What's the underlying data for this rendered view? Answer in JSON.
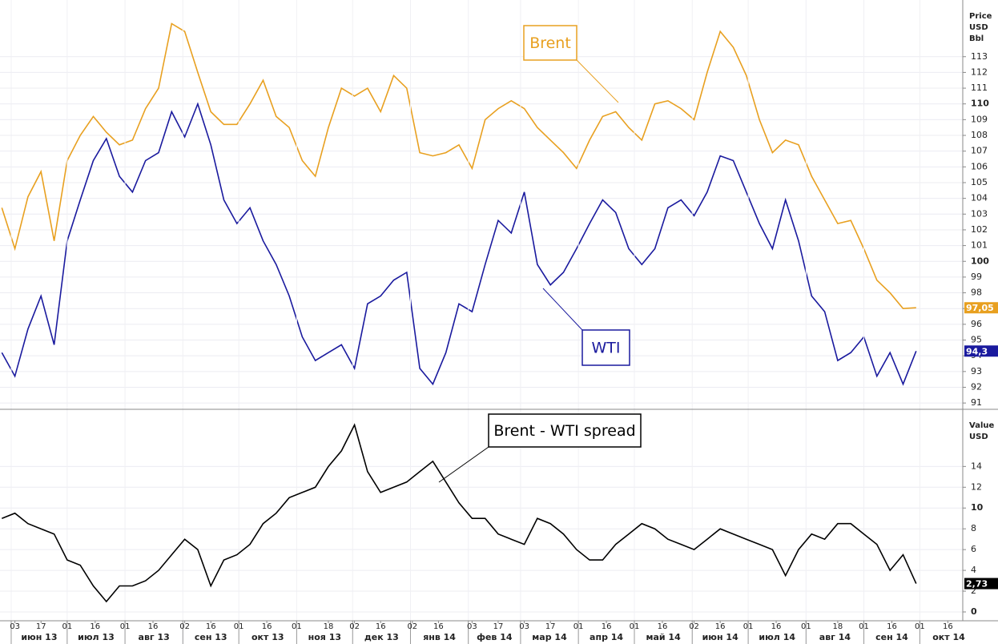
{
  "chart_data": [
    {
      "type": "line",
      "ylabel": [
        "Price",
        "USD",
        "Bbl"
      ],
      "x": [
        "2013-05-27",
        "2013-06-03",
        "2013-06-10",
        "2013-06-17",
        "2013-06-24",
        "2013-07-01",
        "2013-07-08",
        "2013-07-15",
        "2013-07-22",
        "2013-07-29",
        "2013-08-05",
        "2013-08-12",
        "2013-08-19",
        "2013-08-26",
        "2013-09-02",
        "2013-09-09",
        "2013-09-16",
        "2013-09-23",
        "2013-09-30",
        "2013-10-07",
        "2013-10-14",
        "2013-10-21",
        "2013-10-28",
        "2013-11-04",
        "2013-11-11",
        "2013-11-18",
        "2013-11-25",
        "2013-12-02",
        "2013-12-09",
        "2013-12-16",
        "2013-12-23",
        "2013-12-30",
        "2014-01-06",
        "2014-01-13",
        "2014-01-20",
        "2014-01-27",
        "2014-02-03",
        "2014-02-10",
        "2014-02-17",
        "2014-02-24",
        "2014-03-03",
        "2014-03-10",
        "2014-03-17",
        "2014-03-24",
        "2014-03-31",
        "2014-04-07",
        "2014-04-14",
        "2014-04-21",
        "2014-04-28",
        "2014-05-05",
        "2014-05-12",
        "2014-05-19",
        "2014-05-26",
        "2014-06-02",
        "2014-06-09",
        "2014-06-16",
        "2014-06-23",
        "2014-06-30",
        "2014-07-07",
        "2014-07-14",
        "2014-07-21",
        "2014-07-28",
        "2014-08-04",
        "2014-08-11",
        "2014-08-18",
        "2014-08-25",
        "2014-09-01",
        "2014-09-08",
        "2014-09-15",
        "2014-09-22",
        "2014-09-29"
      ],
      "series": [
        {
          "name": "Brent",
          "color": "#e8a020",
          "end_label": "97,05",
          "values": [
            103.4,
            100.8,
            104.1,
            105.7,
            101.3,
            106.4,
            108.0,
            109.2,
            108.2,
            107.4,
            107.7,
            109.7,
            111.0,
            115.1,
            114.6,
            112.0,
            109.5,
            108.7,
            108.7,
            110.0,
            111.5,
            109.2,
            108.5,
            106.4,
            105.4,
            108.5,
            111.0,
            110.5,
            111.0,
            109.5,
            111.8,
            111.0,
            106.9,
            106.7,
            106.9,
            107.4,
            105.9,
            109.0,
            109.7,
            110.2,
            109.7,
            108.5,
            107.7,
            106.9,
            105.9,
            107.7,
            109.2,
            109.5,
            108.5,
            107.7,
            110.0,
            110.2,
            109.7,
            109.0,
            112.0,
            114.6,
            113.6,
            111.8,
            109.0,
            106.9,
            107.7,
            107.4,
            105.4,
            103.9,
            102.4,
            102.6,
            100.8,
            98.8,
            98.0,
            97.0,
            97.05
          ]
        },
        {
          "name": "WTI",
          "color": "#1a1a9e",
          "end_label": "94,3",
          "values": [
            94.2,
            92.7,
            95.7,
            97.8,
            94.7,
            101.3,
            103.9,
            106.4,
            107.8,
            105.4,
            104.4,
            106.4,
            106.9,
            109.5,
            107.9,
            110.0,
            107.4,
            103.9,
            102.4,
            103.4,
            101.3,
            99.8,
            97.8,
            95.2,
            93.7,
            94.2,
            94.7,
            93.2,
            97.3,
            97.8,
            98.8,
            99.3,
            93.2,
            92.2,
            94.2,
            97.3,
            96.8,
            99.8,
            102.6,
            101.8,
            104.4,
            99.8,
            98.5,
            99.3,
            100.8,
            102.4,
            103.9,
            103.1,
            100.8,
            99.8,
            100.8,
            103.4,
            103.9,
            102.9,
            104.4,
            106.7,
            106.4,
            104.4,
            102.4,
            100.8,
            103.9,
            101.3,
            97.8,
            96.8,
            93.7,
            94.2,
            95.2,
            92.7,
            94.2,
            92.2,
            94.3
          ]
        }
      ],
      "xlim": [
        "2013-05-26",
        "2014-10-24"
      ],
      "ylim": [
        90.6,
        116.6
      ],
      "yticks": [
        91,
        92,
        93,
        94,
        95,
        96,
        97,
        98,
        99,
        100,
        101,
        102,
        103,
        104,
        105,
        106,
        107,
        108,
        109,
        110,
        111,
        112,
        113
      ],
      "grid": true
    },
    {
      "type": "line",
      "ylabel": [
        "Value",
        "USD"
      ],
      "x": [
        "2013-05-27",
        "2013-06-03",
        "2013-06-10",
        "2013-06-17",
        "2013-06-24",
        "2013-07-01",
        "2013-07-08",
        "2013-07-15",
        "2013-07-22",
        "2013-07-29",
        "2013-08-05",
        "2013-08-12",
        "2013-08-19",
        "2013-08-26",
        "2013-09-02",
        "2013-09-09",
        "2013-09-16",
        "2013-09-23",
        "2013-09-30",
        "2013-10-07",
        "2013-10-14",
        "2013-10-21",
        "2013-10-28",
        "2013-11-04",
        "2013-11-11",
        "2013-11-18",
        "2013-11-25",
        "2013-12-02",
        "2013-12-09",
        "2013-12-16",
        "2013-12-23",
        "2013-12-30",
        "2014-01-06",
        "2014-01-13",
        "2014-01-20",
        "2014-01-27",
        "2014-02-03",
        "2014-02-10",
        "2014-02-17",
        "2014-02-24",
        "2014-03-03",
        "2014-03-10",
        "2014-03-17",
        "2014-03-24",
        "2014-03-31",
        "2014-04-07",
        "2014-04-14",
        "2014-04-21",
        "2014-04-28",
        "2014-05-05",
        "2014-05-12",
        "2014-05-19",
        "2014-05-26",
        "2014-06-02",
        "2014-06-09",
        "2014-06-16",
        "2014-06-23",
        "2014-06-30",
        "2014-07-07",
        "2014-07-14",
        "2014-07-21",
        "2014-07-28",
        "2014-08-04",
        "2014-08-11",
        "2014-08-18",
        "2014-08-25",
        "2014-09-01",
        "2014-09-08",
        "2014-09-15",
        "2014-09-22",
        "2014-09-29"
      ],
      "series": [
        {
          "name": "Brent - WTI spread",
          "color": "#000000",
          "end_label": "2,73",
          "values": [
            9,
            9.5,
            8.5,
            8,
            7.5,
            5,
            4.5,
            2.5,
            1,
            2.5,
            2.5,
            3,
            4,
            5.5,
            7,
            6,
            2.5,
            5,
            5.5,
            6.5,
            8.5,
            9.5,
            11,
            11.5,
            12,
            14,
            15.5,
            18,
            13.5,
            11.5,
            12,
            12.5,
            13.5,
            14.5,
            12.5,
            10.5,
            9,
            9,
            7.5,
            7,
            6.5,
            9,
            8.5,
            7.5,
            6,
            5,
            5,
            6.5,
            7.5,
            8.5,
            8,
            7,
            6.5,
            6,
            7,
            8,
            7.5,
            7,
            6.5,
            6,
            3.5,
            6,
            7.5,
            7,
            8.5,
            8.5,
            7.5,
            6.5,
            4,
            5.5,
            2.73
          ]
        }
      ],
      "xlim": [
        "2013-05-26",
        "2014-10-24"
      ],
      "ylim": [
        -0.85,
        19.5
      ],
      "yticks": [
        0,
        2,
        4,
        6,
        8,
        10,
        12,
        14
      ],
      "grid": true,
      "xticks": [
        {
          "value": "2013-06-03",
          "label": "03"
        },
        {
          "value": "2013-06-17",
          "label": "17"
        },
        {
          "value": "2013-07-01",
          "label": "01"
        },
        {
          "value": "2013-07-16",
          "label": "16"
        },
        {
          "value": "2013-08-01",
          "label": "01"
        },
        {
          "value": "2013-08-16",
          "label": "16"
        },
        {
          "value": "2013-09-02",
          "label": "02"
        },
        {
          "value": "2013-09-16",
          "label": "16"
        },
        {
          "value": "2013-10-01",
          "label": "01"
        },
        {
          "value": "2013-10-16",
          "label": "16"
        },
        {
          "value": "2013-11-01",
          "label": "01"
        },
        {
          "value": "2013-11-18",
          "label": "18"
        },
        {
          "value": "2013-12-02",
          "label": "02"
        },
        {
          "value": "2013-12-16",
          "label": "16"
        },
        {
          "value": "2014-01-02",
          "label": "02"
        },
        {
          "value": "2014-01-16",
          "label": "16"
        },
        {
          "value": "2014-02-03",
          "label": "03"
        },
        {
          "value": "2014-02-17",
          "label": "17"
        },
        {
          "value": "2014-03-03",
          "label": "03"
        },
        {
          "value": "2014-03-17",
          "label": "17"
        },
        {
          "value": "2014-04-01",
          "label": "01"
        },
        {
          "value": "2014-04-16",
          "label": "16"
        },
        {
          "value": "2014-05-01",
          "label": "01"
        },
        {
          "value": "2014-05-16",
          "label": "16"
        },
        {
          "value": "2014-06-02",
          "label": "02"
        },
        {
          "value": "2014-06-16",
          "label": "16"
        },
        {
          "value": "2014-07-01",
          "label": "01"
        },
        {
          "value": "2014-07-16",
          "label": "16"
        },
        {
          "value": "2014-08-01",
          "label": "01"
        },
        {
          "value": "2014-08-18",
          "label": "18"
        },
        {
          "value": "2014-09-01",
          "label": "01"
        },
        {
          "value": "2014-09-16",
          "label": "16"
        },
        {
          "value": "2014-10-01",
          "label": "01"
        },
        {
          "value": "2014-10-16",
          "label": "16"
        }
      ],
      "months": [
        {
          "value": "2013-06-01",
          "label": "июн 13"
        },
        {
          "value": "2013-07-01",
          "label": "июл 13"
        },
        {
          "value": "2013-08-01",
          "label": "авг 13"
        },
        {
          "value": "2013-09-01",
          "label": "сен 13"
        },
        {
          "value": "2013-10-01",
          "label": "окт 13"
        },
        {
          "value": "2013-11-01",
          "label": "ноя 13"
        },
        {
          "value": "2013-12-01",
          "label": "дек 13"
        },
        {
          "value": "2014-01-01",
          "label": "янв 14"
        },
        {
          "value": "2014-02-01",
          "label": "фев 14"
        },
        {
          "value": "2014-03-01",
          "label": "мар 14"
        },
        {
          "value": "2014-04-01",
          "label": "апр 14"
        },
        {
          "value": "2014-05-01",
          "label": "май 14"
        },
        {
          "value": "2014-06-01",
          "label": "июн 14"
        },
        {
          "value": "2014-07-01",
          "label": "июл 14"
        },
        {
          "value": "2014-08-01",
          "label": "авг 14"
        },
        {
          "value": "2014-09-01",
          "label": "сен 14"
        },
        {
          "value": "2014-10-01",
          "label": "окт 14"
        }
      ]
    }
  ]
}
